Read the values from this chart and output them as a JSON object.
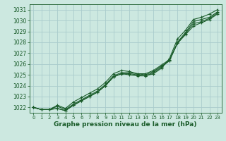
{
  "x": [
    0,
    1,
    2,
    3,
    4,
    5,
    6,
    7,
    8,
    9,
    10,
    11,
    12,
    13,
    14,
    15,
    16,
    17,
    18,
    19,
    20,
    21,
    22,
    23
  ],
  "line1": [
    1022.0,
    1021.8,
    1021.8,
    1021.9,
    1021.7,
    1022.2,
    1022.6,
    1023.0,
    1023.4,
    1024.0,
    1024.8,
    1025.1,
    1025.0,
    1024.9,
    1024.9,
    1025.1,
    1025.6,
    1026.5,
    1028.3,
    1029.1,
    1030.1,
    1030.3,
    1030.6,
    1031.0
  ],
  "line2": [
    1022.0,
    1021.8,
    1021.8,
    1021.9,
    1021.7,
    1022.2,
    1022.6,
    1023.0,
    1023.4,
    1024.0,
    1024.8,
    1025.1,
    1025.1,
    1025.0,
    1024.9,
    1025.2,
    1025.7,
    1026.3,
    1028.0,
    1028.9,
    1029.9,
    1030.1,
    1030.3,
    1030.8
  ],
  "line3": [
    1022.0,
    1021.8,
    1021.8,
    1022.1,
    1021.8,
    1022.3,
    1022.7,
    1023.1,
    1023.5,
    1024.1,
    1024.9,
    1025.2,
    1025.2,
    1025.1,
    1025.0,
    1025.3,
    1025.8,
    1026.3,
    1027.9,
    1028.8,
    1029.7,
    1029.9,
    1030.2,
    1030.7
  ],
  "line4": [
    1022.0,
    1021.8,
    1021.8,
    1022.2,
    1021.9,
    1022.5,
    1022.9,
    1023.3,
    1023.7,
    1024.3,
    1025.1,
    1025.4,
    1025.3,
    1025.1,
    1025.1,
    1025.4,
    1025.9,
    1026.4,
    1027.9,
    1028.7,
    1029.5,
    1029.8,
    1030.1,
    1030.6
  ],
  "bg_color": "#cce8e0",
  "grid_color": "#aacccc",
  "line_color": "#1a5c2a",
  "xlabel": "Graphe pression niveau de la mer (hPa)",
  "ylim": [
    1021.5,
    1031.5
  ],
  "yticks": [
    1022,
    1023,
    1024,
    1025,
    1026,
    1027,
    1028,
    1029,
    1030,
    1031
  ],
  "xticks": [
    0,
    1,
    2,
    3,
    4,
    5,
    6,
    7,
    8,
    9,
    10,
    11,
    12,
    13,
    14,
    15,
    16,
    17,
    18,
    19,
    20,
    21,
    22,
    23
  ]
}
